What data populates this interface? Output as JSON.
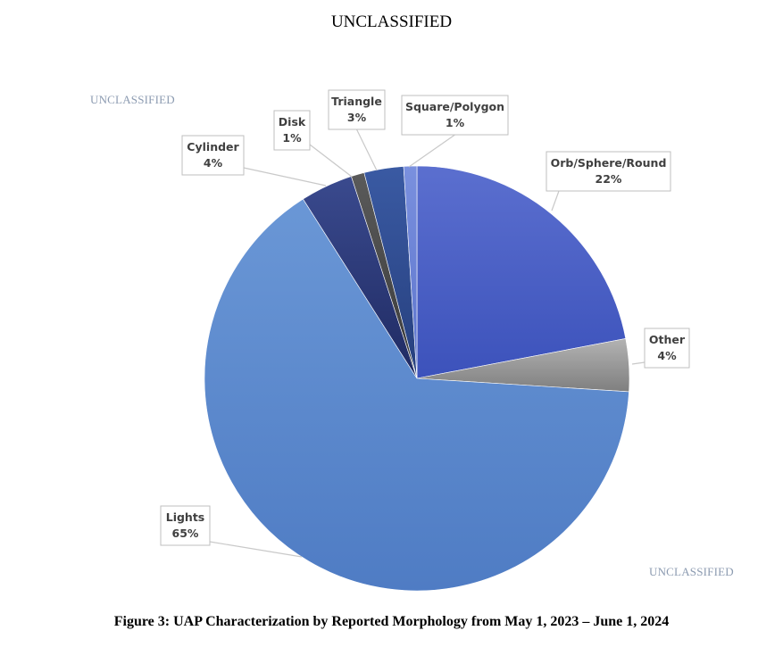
{
  "header": {
    "classification": "UNCLASSIFIED"
  },
  "watermarks": [
    "UNCLASSIFIED",
    "UNCLASSIFIED"
  ],
  "caption": "Figure 3:  UAP Characterization by Reported Morphology from May 1, 2023 – June 1, 2024",
  "chart_data": {
    "type": "pie",
    "title": "",
    "slices": [
      {
        "label": "Orb/Sphere/Round",
        "value": 22,
        "display": "22%",
        "color": "#4a5fc4"
      },
      {
        "label": "Other",
        "value": 4,
        "display": "4%",
        "color": "#9d9d9d"
      },
      {
        "label": "Lights",
        "value": 65,
        "display": "65%",
        "color": "#5b87cf"
      },
      {
        "label": "Cylinder",
        "value": 4,
        "display": "4%",
        "color": "#2c3b7a"
      },
      {
        "label": "Disk",
        "value": 1,
        "display": "1%",
        "color": "#4a4a4a"
      },
      {
        "label": "Triangle",
        "value": 3,
        "display": "3%",
        "color": "#2f4e92"
      },
      {
        "label": "Square/Polygon",
        "value": 1,
        "display": "1%",
        "color": "#6a82d6"
      }
    ]
  }
}
